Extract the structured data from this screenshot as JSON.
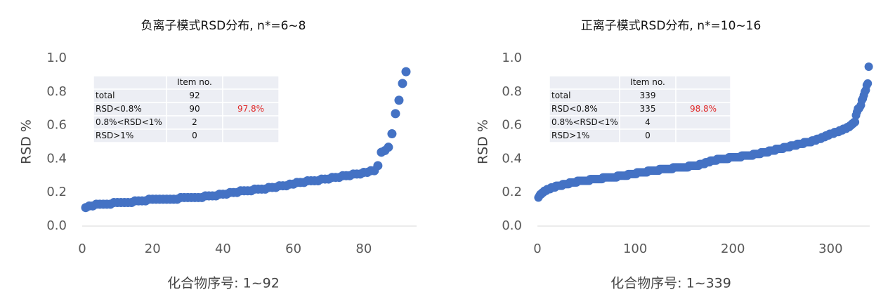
{
  "chart_data": [
    {
      "type": "scatter",
      "title": "负离子模式RSD分布, n*=6~8",
      "x_label": "化合物序号: 1~92",
      "y_label": "RSD %",
      "color": "#4472c4",
      "xlim": [
        0,
        95
      ],
      "xticks": [
        0,
        20,
        40,
        60,
        80
      ],
      "ylim": [
        0,
        1
      ],
      "yticks": [
        {
          "value": 0,
          "label": "0.0"
        },
        0.2,
        0.4,
        0.6,
        0.8,
        {
          "value": 1,
          "label": "1.0"
        }
      ],
      "grid": false,
      "x": [
        1,
        2,
        3,
        4,
        5,
        6,
        7,
        8,
        9,
        10,
        11,
        12,
        13,
        14,
        15,
        16,
        17,
        18,
        19,
        20,
        21,
        22,
        23,
        24,
        25,
        26,
        27,
        28,
        29,
        30,
        31,
        32,
        33,
        34,
        35,
        36,
        37,
        38,
        39,
        40,
        41,
        42,
        43,
        44,
        45,
        46,
        47,
        48,
        49,
        50,
        51,
        52,
        53,
        54,
        55,
        56,
        57,
        58,
        59,
        60,
        61,
        62,
        63,
        64,
        65,
        66,
        67,
        68,
        69,
        70,
        71,
        72,
        73,
        74,
        75,
        76,
        77,
        78,
        79,
        80,
        81,
        82,
        83,
        84,
        85,
        86,
        87,
        88,
        89,
        90,
        91,
        92
      ],
      "values": [
        0.11,
        0.12,
        0.12,
        0.13,
        0.13,
        0.13,
        0.13,
        0.13,
        0.14,
        0.14,
        0.14,
        0.14,
        0.14,
        0.14,
        0.15,
        0.15,
        0.15,
        0.15,
        0.16,
        0.16,
        0.16,
        0.16,
        0.16,
        0.16,
        0.16,
        0.16,
        0.16,
        0.17,
        0.17,
        0.17,
        0.17,
        0.17,
        0.17,
        0.17,
        0.18,
        0.18,
        0.18,
        0.18,
        0.19,
        0.19,
        0.19,
        0.2,
        0.2,
        0.2,
        0.21,
        0.21,
        0.21,
        0.21,
        0.22,
        0.22,
        0.22,
        0.22,
        0.23,
        0.23,
        0.23,
        0.24,
        0.24,
        0.24,
        0.25,
        0.25,
        0.26,
        0.26,
        0.26,
        0.27,
        0.27,
        0.27,
        0.27,
        0.28,
        0.28,
        0.28,
        0.29,
        0.29,
        0.29,
        0.3,
        0.3,
        0.3,
        0.31,
        0.31,
        0.31,
        0.32,
        0.32,
        0.33,
        0.33,
        0.36,
        0.44,
        0.45,
        0.47,
        0.55,
        0.67,
        0.75,
        0.85,
        0.92
      ],
      "table": {
        "header": "Item no.",
        "rows": [
          {
            "label": "total",
            "count": 92
          },
          {
            "label": "RSD<0.8%",
            "count": 90,
            "percent": "97.8%"
          },
          {
            "label": "0.8%<RSD<1%",
            "count": 2
          },
          {
            "label": "RSD>1%",
            "count": 0
          }
        ]
      }
    },
    {
      "type": "scatter",
      "title": "正离子模式RSD分布, n*=10~16",
      "x_label": "化合物序号: 1~339",
      "y_label": "RSD %",
      "color": "#4472c4",
      "xlim": [
        0,
        340
      ],
      "xticks": [
        0,
        100,
        200,
        300
      ],
      "ylim": [
        0,
        1
      ],
      "yticks": [
        {
          "value": 0,
          "label": "0.0"
        },
        0.2,
        0.4,
        0.6,
        0.8,
        {
          "value": 1,
          "label": "1.0"
        }
      ],
      "grid": false,
      "x": [
        1,
        2,
        3,
        4,
        5,
        6,
        7,
        8,
        9,
        10,
        11,
        12,
        13,
        14,
        15,
        16,
        17,
        18,
        19,
        20,
        21,
        22,
        23,
        24,
        25,
        26,
        27,
        28,
        29,
        30,
        31,
        32,
        33,
        34,
        35,
        36,
        37,
        38,
        39,
        40,
        41,
        42,
        43,
        44,
        45,
        46,
        47,
        48,
        49,
        50,
        51,
        52,
        53,
        54,
        55,
        56,
        57,
        58,
        59,
        60,
        61,
        62,
        63,
        64,
        65,
        66,
        67,
        68,
        69,
        70,
        71,
        72,
        73,
        74,
        75,
        76,
        77,
        78,
        79,
        80,
        81,
        82,
        83,
        84,
        85,
        86,
        87,
        88,
        89,
        90,
        91,
        92,
        93,
        94,
        95,
        96,
        97,
        98,
        99,
        100,
        101,
        102,
        103,
        104,
        105,
        106,
        107,
        108,
        109,
        110,
        111,
        112,
        113,
        114,
        115,
        116,
        117,
        118,
        119,
        120,
        121,
        122,
        123,
        124,
        125,
        126,
        127,
        128,
        129,
        130,
        131,
        132,
        133,
        134,
        135,
        136,
        137,
        138,
        139,
        140,
        141,
        142,
        143,
        144,
        145,
        146,
        147,
        148,
        149,
        150,
        151,
        152,
        153,
        154,
        155,
        156,
        157,
        158,
        159,
        160,
        161,
        162,
        163,
        164,
        165,
        166,
        167,
        168,
        169,
        170,
        171,
        172,
        173,
        174,
        175,
        176,
        177,
        178,
        179,
        180,
        181,
        182,
        183,
        184,
        185,
        186,
        187,
        188,
        189,
        190,
        191,
        192,
        193,
        194,
        195,
        196,
        197,
        198,
        199,
        200,
        201,
        202,
        203,
        204,
        205,
        206,
        207,
        208,
        209,
        210,
        211,
        212,
        213,
        214,
        215,
        216,
        217,
        218,
        219,
        220,
        221,
        222,
        223,
        224,
        225,
        226,
        227,
        228,
        229,
        230,
        231,
        232,
        233,
        234,
        235,
        236,
        237,
        238,
        239,
        240,
        241,
        242,
        243,
        244,
        245,
        246,
        247,
        248,
        249,
        250,
        251,
        252,
        253,
        254,
        255,
        256,
        257,
        258,
        259,
        260,
        261,
        262,
        263,
        264,
        265,
        266,
        267,
        268,
        269,
        270,
        271,
        272,
        273,
        274,
        275,
        276,
        277,
        278,
        279,
        280,
        281,
        282,
        283,
        284,
        285,
        286,
        287,
        288,
        289,
        290,
        291,
        292,
        293,
        294,
        295,
        296,
        297,
        298,
        299,
        300,
        301,
        302,
        303,
        304,
        305,
        306,
        307,
        308,
        309,
        310,
        311,
        312,
        313,
        314,
        315,
        316,
        317,
        318,
        319,
        320,
        321,
        322,
        323,
        324,
        325,
        326,
        327,
        328,
        329,
        330,
        331,
        332,
        333,
        334,
        335,
        336,
        337,
        338,
        339
      ],
      "values": [
        0.17,
        0.18,
        0.19,
        0.19,
        0.2,
        0.2,
        0.21,
        0.21,
        0.21,
        0.22,
        0.22,
        0.22,
        0.22,
        0.23,
        0.23,
        0.23,
        0.23,
        0.23,
        0.24,
        0.24,
        0.24,
        0.24,
        0.24,
        0.24,
        0.24,
        0.25,
        0.25,
        0.25,
        0.25,
        0.25,
        0.25,
        0.25,
        0.26,
        0.26,
        0.26,
        0.26,
        0.26,
        0.26,
        0.26,
        0.26,
        0.27,
        0.27,
        0.27,
        0.27,
        0.27,
        0.27,
        0.27,
        0.27,
        0.27,
        0.27,
        0.27,
        0.27,
        0.27,
        0.28,
        0.28,
        0.28,
        0.28,
        0.28,
        0.28,
        0.28,
        0.28,
        0.28,
        0.28,
        0.28,
        0.28,
        0.28,
        0.29,
        0.29,
        0.29,
        0.29,
        0.29,
        0.29,
        0.29,
        0.29,
        0.29,
        0.29,
        0.29,
        0.29,
        0.29,
        0.29,
        0.29,
        0.3,
        0.3,
        0.3,
        0.3,
        0.3,
        0.3,
        0.3,
        0.3,
        0.3,
        0.3,
        0.3,
        0.31,
        0.31,
        0.31,
        0.31,
        0.31,
        0.31,
        0.31,
        0.31,
        0.31,
        0.32,
        0.32,
        0.32,
        0.32,
        0.32,
        0.32,
        0.32,
        0.32,
        0.32,
        0.32,
        0.32,
        0.33,
        0.33,
        0.33,
        0.33,
        0.33,
        0.33,
        0.33,
        0.33,
        0.33,
        0.33,
        0.33,
        0.33,
        0.34,
        0.34,
        0.34,
        0.34,
        0.34,
        0.34,
        0.34,
        0.34,
        0.34,
        0.34,
        0.34,
        0.34,
        0.34,
        0.34,
        0.35,
        0.35,
        0.35,
        0.35,
        0.35,
        0.35,
        0.35,
        0.35,
        0.35,
        0.35,
        0.35,
        0.35,
        0.35,
        0.35,
        0.35,
        0.35,
        0.36,
        0.36,
        0.36,
        0.36,
        0.36,
        0.36,
        0.36,
        0.36,
        0.36,
        0.36,
        0.36,
        0.37,
        0.37,
        0.37,
        0.37,
        0.37,
        0.37,
        0.38,
        0.38,
        0.38,
        0.38,
        0.38,
        0.39,
        0.39,
        0.39,
        0.39,
        0.39,
        0.39,
        0.39,
        0.4,
        0.4,
        0.4,
        0.4,
        0.4,
        0.4,
        0.4,
        0.4,
        0.4,
        0.4,
        0.4,
        0.4,
        0.41,
        0.41,
        0.41,
        0.41,
        0.41,
        0.41,
        0.41,
        0.41,
        0.41,
        0.41,
        0.41,
        0.41,
        0.41,
        0.42,
        0.42,
        0.42,
        0.42,
        0.42,
        0.42,
        0.42,
        0.42,
        0.42,
        0.42,
        0.42,
        0.42,
        0.43,
        0.43,
        0.43,
        0.43,
        0.43,
        0.43,
        0.43,
        0.43,
        0.44,
        0.44,
        0.44,
        0.44,
        0.44,
        0.44,
        0.44,
        0.44,
        0.45,
        0.45,
        0.45,
        0.45,
        0.45,
        0.45,
        0.45,
        0.46,
        0.46,
        0.46,
        0.46,
        0.46,
        0.46,
        0.46,
        0.46,
        0.47,
        0.47,
        0.47,
        0.47,
        0.47,
        0.47,
        0.47,
        0.48,
        0.48,
        0.48,
        0.48,
        0.48,
        0.48,
        0.48,
        0.49,
        0.49,
        0.49,
        0.49,
        0.49,
        0.49,
        0.49,
        0.5,
        0.5,
        0.5,
        0.5,
        0.5,
        0.5,
        0.5,
        0.5,
        0.51,
        0.51,
        0.51,
        0.51,
        0.51,
        0.52,
        0.52,
        0.52,
        0.52,
        0.52,
        0.53,
        0.53,
        0.53,
        0.53,
        0.54,
        0.54,
        0.54,
        0.54,
        0.55,
        0.55,
        0.55,
        0.55,
        0.55,
        0.56,
        0.56,
        0.56,
        0.56,
        0.56,
        0.57,
        0.57,
        0.57,
        0.57,
        0.58,
        0.58,
        0.58,
        0.58,
        0.59,
        0.59,
        0.59,
        0.6,
        0.6,
        0.61,
        0.61,
        0.62,
        0.62,
        0.66,
        0.68,
        0.7,
        0.7,
        0.71,
        0.72,
        0.75,
        0.76,
        0.78,
        0.8,
        0.81,
        0.84,
        0.85,
        0.95
      ],
      "table": {
        "header": "Item no.",
        "rows": [
          {
            "label": "total",
            "count": 339
          },
          {
            "label": "RSD<0.8%",
            "count": 335,
            "percent": "98.8%"
          },
          {
            "label": "0.8%<RSD<1%",
            "count": 4
          },
          {
            "label": "RSD>1%",
            "count": 0
          }
        ]
      }
    }
  ]
}
